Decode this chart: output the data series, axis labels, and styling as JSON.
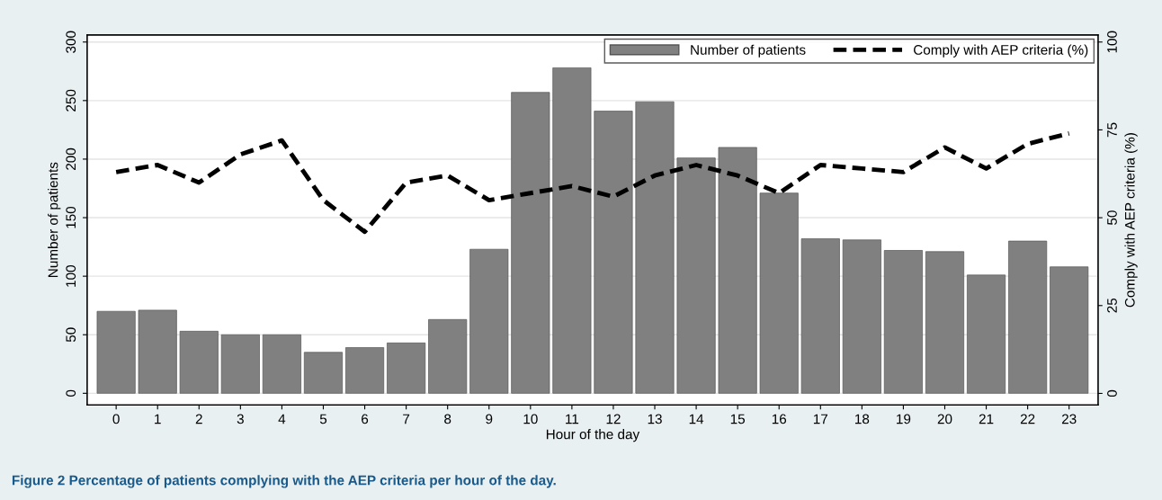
{
  "chart_data": {
    "type": "bar",
    "categories": [
      "0",
      "1",
      "2",
      "3",
      "4",
      "5",
      "6",
      "7",
      "8",
      "9",
      "10",
      "11",
      "12",
      "13",
      "14",
      "15",
      "16",
      "17",
      "18",
      "19",
      "20",
      "21",
      "22",
      "23"
    ],
    "series": [
      {
        "name": "Number of patients",
        "color": "#808080",
        "values": [
          70,
          71,
          53,
          50,
          50,
          35,
          39,
          43,
          63,
          123,
          257,
          278,
          241,
          249,
          201,
          210,
          171,
          132,
          131,
          122,
          121,
          101,
          130,
          108
        ]
      },
      {
        "name": "Comply with AEP criteria (%)",
        "type": "line",
        "axis": "y2",
        "color": "#000000",
        "line_style": "dashed",
        "values": [
          63,
          65,
          60,
          68,
          72,
          55,
          46,
          60,
          62,
          55,
          57,
          59,
          56,
          62,
          65,
          62,
          57,
          65,
          64,
          63,
          70,
          64,
          71,
          74
        ]
      }
    ],
    "xlabel": "Hour of the day",
    "ylabel": "Number of patients",
    "y2label": "Comply with AEP criteria (%)",
    "ylim": [
      -10,
      306
    ],
    "yticks": [
      0,
      50,
      100,
      150,
      200,
      250,
      300
    ],
    "y2lim": [
      -3.3,
      102
    ],
    "y2ticks": [
      0,
      25,
      50,
      75,
      100
    ],
    "grid": "y",
    "legend": "top right",
    "annotations": [
      "Figure 2 Percentage of patients complying with the AEP criteria per hour of the day."
    ]
  }
}
